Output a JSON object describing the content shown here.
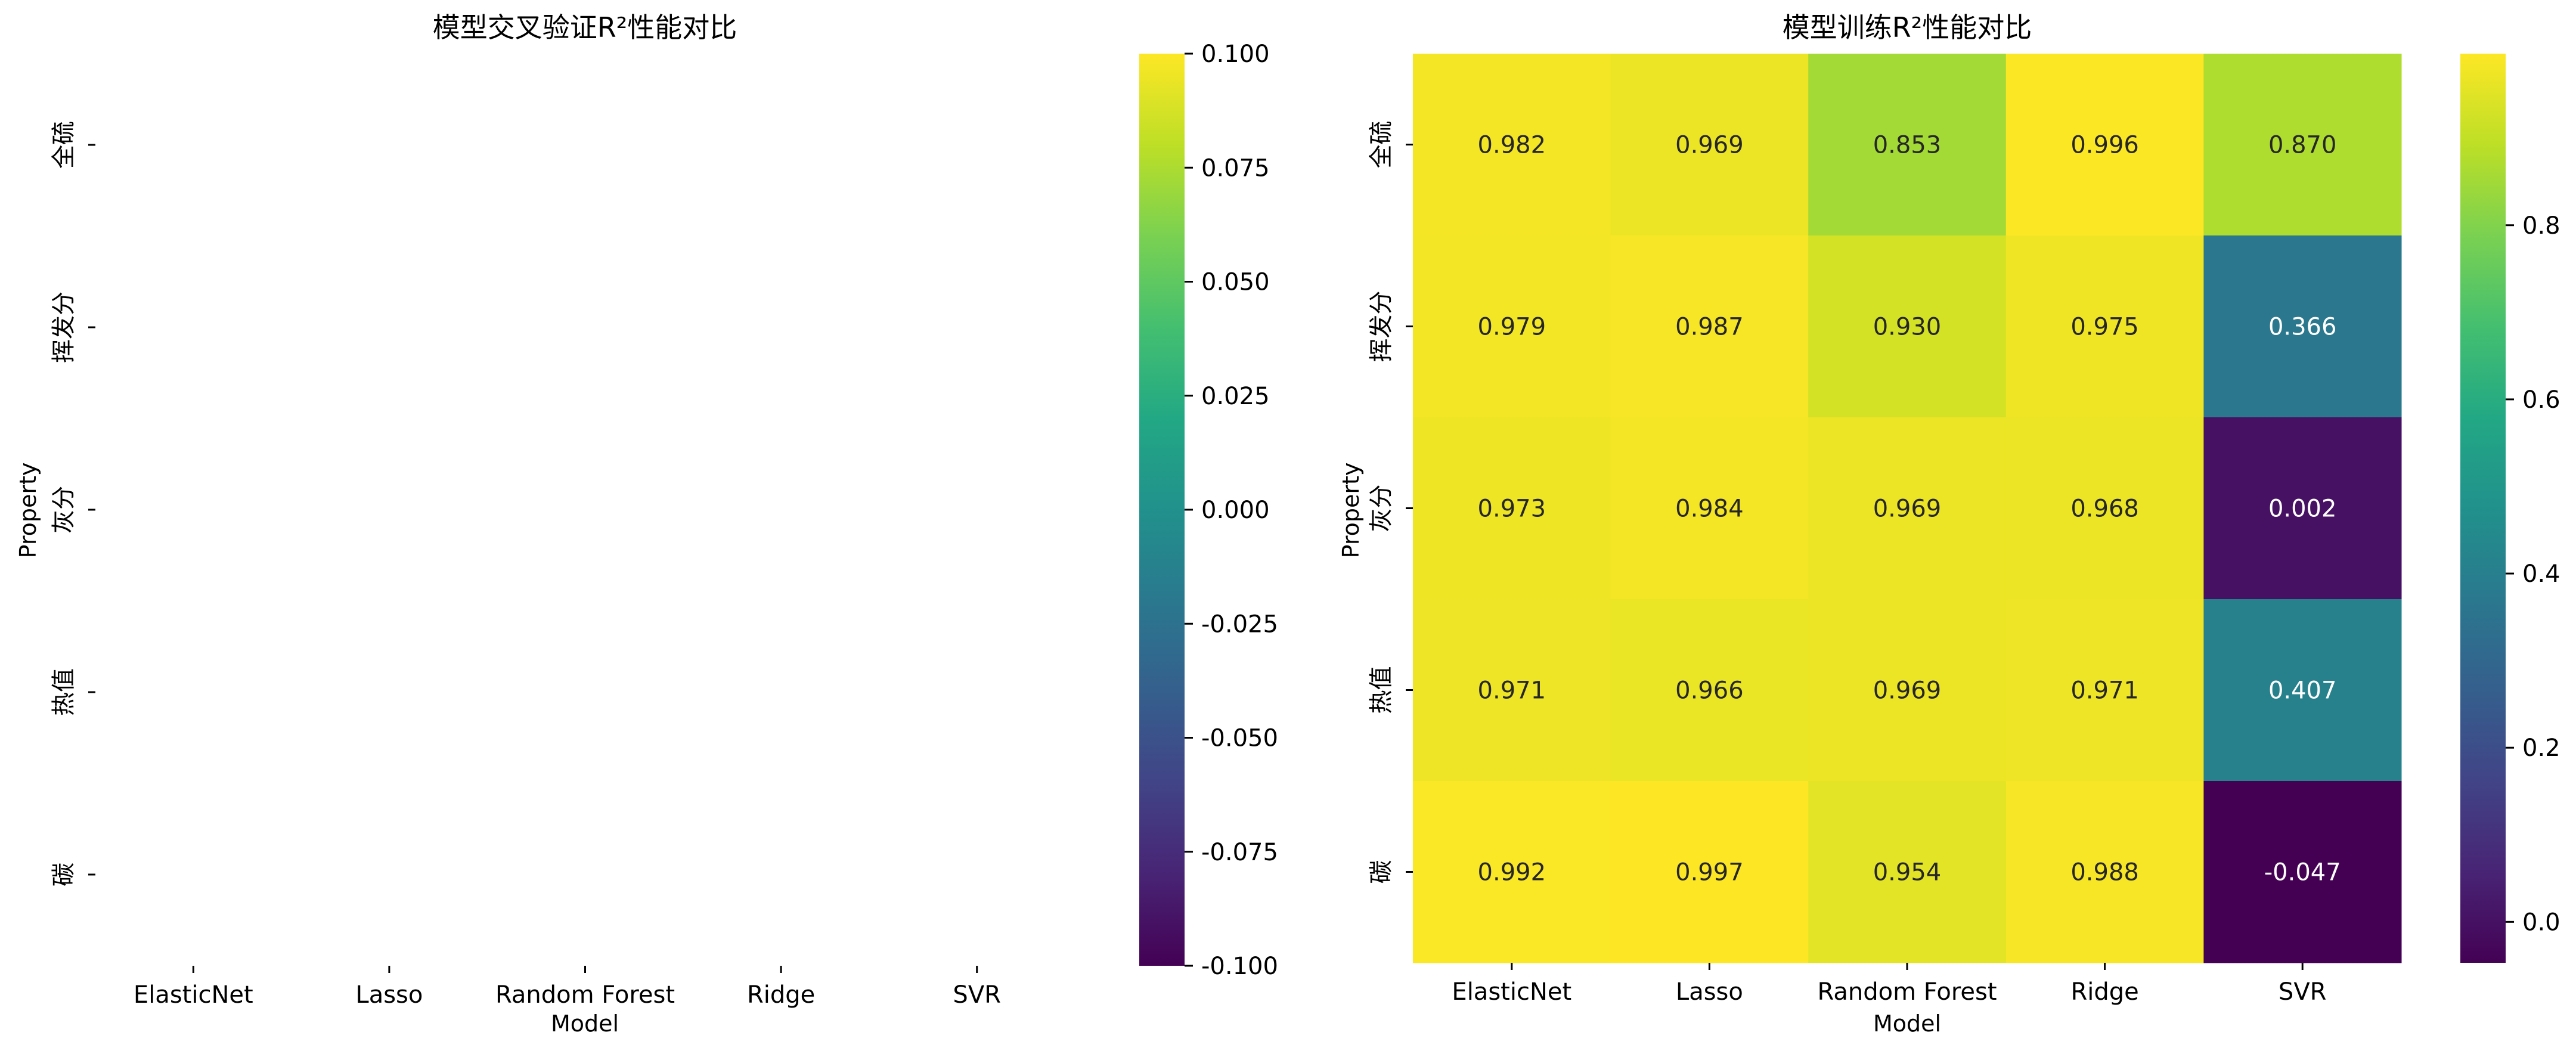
{
  "chart_data": [
    {
      "type": "heatmap",
      "title": "模型交叉验证R²性能对比",
      "xlabel": "Model",
      "ylabel": "Property",
      "x_categories": [
        "ElasticNet",
        "Lasso",
        "Random Forest",
        "Ridge",
        "SVR"
      ],
      "y_categories": [
        "全硫",
        "挥发分",
        "灰分",
        "热值",
        "碳"
      ],
      "values": null,
      "cell_annotations": false,
      "colormap": "viridis",
      "colorbar": {
        "range": [
          -0.1,
          0.1
        ],
        "tick_values": [
          0.1,
          0.075,
          0.05,
          0.025,
          0.0,
          -0.025,
          -0.05,
          -0.075,
          -0.1
        ],
        "tick_labels": [
          "0.100",
          "0.075",
          "0.050",
          "0.025",
          "0.000",
          "-0.025",
          "-0.050",
          "-0.075",
          "-0.100"
        ]
      }
    },
    {
      "type": "heatmap",
      "title": "模型训练R²性能对比",
      "xlabel": "Model",
      "ylabel": "Property",
      "x_categories": [
        "ElasticNet",
        "Lasso",
        "Random Forest",
        "Ridge",
        "SVR"
      ],
      "y_categories": [
        "全硫",
        "挥发分",
        "灰分",
        "热值",
        "碳"
      ],
      "values": [
        [
          0.982,
          0.969,
          0.853,
          0.996,
          0.87
        ],
        [
          0.979,
          0.987,
          0.93,
          0.975,
          0.366
        ],
        [
          0.973,
          0.984,
          0.969,
          0.968,
          0.002
        ],
        [
          0.971,
          0.966,
          0.969,
          0.971,
          0.407
        ],
        [
          0.992,
          0.997,
          0.954,
          0.988,
          -0.047
        ]
      ],
      "cell_labels": [
        [
          "0.982",
          "0.969",
          "0.853",
          "0.996",
          "0.870"
        ],
        [
          "0.979",
          "0.987",
          "0.930",
          "0.975",
          "0.366"
        ],
        [
          "0.973",
          "0.984",
          "0.969",
          "0.968",
          "0.002"
        ],
        [
          "0.971",
          "0.966",
          "0.969",
          "0.971",
          "0.407"
        ],
        [
          "0.992",
          "0.997",
          "0.954",
          "0.988",
          "-0.047"
        ]
      ],
      "cell_annotations": true,
      "colormap": "viridis",
      "colorbar": {
        "range": [
          -0.047,
          0.997
        ],
        "tick_values": [
          0.8,
          0.6,
          0.4,
          0.2,
          0.0
        ],
        "tick_labels": [
          "0.8",
          "0.6",
          "0.4",
          "0.2",
          "0.0"
        ]
      }
    }
  ]
}
